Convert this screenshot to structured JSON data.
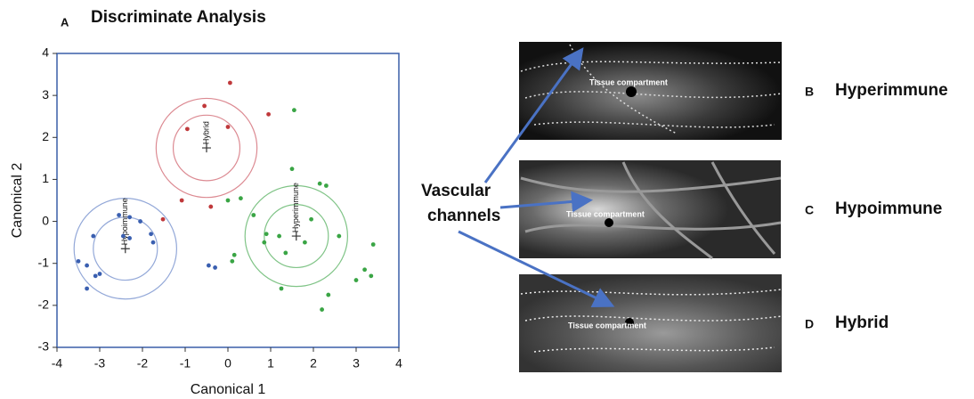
{
  "chart_data": {
    "type": "scatter",
    "panel": "A",
    "title": "Discriminate Analysis",
    "x_label": "Canonical 1",
    "y_label": "Canonical 2",
    "xlim": [
      -4,
      4
    ],
    "ylim": [
      -3,
      4
    ],
    "xticks": [
      -4,
      -3,
      -2,
      -1,
      0,
      1,
      2,
      3,
      4
    ],
    "yticks": [
      -3,
      -2,
      -1,
      0,
      1,
      2,
      3,
      4
    ],
    "series": [
      {
        "name": "Hybrid",
        "color": "#c0393b",
        "circle_color": "#dc8a92",
        "x": [
          0.05,
          -0.55,
          0.95,
          -0.95,
          0,
          -1.08,
          -0.4,
          -1.52
        ],
        "y": [
          3.3,
          2.75,
          2.55,
          2.2,
          2.25,
          0.5,
          0.35,
          0.05
        ],
        "centroid": {
          "x": -0.5,
          "y": 1.75,
          "radii": [
            0.78,
            1.18
          ]
        }
      },
      {
        "name": "Hypoimmune",
        "color": "#3a5fb0",
        "circle_color": "#93a8d8",
        "x": [
          -3.15,
          -2.55,
          -2.3,
          -2.05,
          -1.8,
          -1.75,
          -3.5,
          -3.3,
          -3.1,
          -3.0,
          -3.3,
          -2.3,
          -2.45,
          -0.45,
          -0.3
        ],
        "y": [
          -0.35,
          0.15,
          0.1,
          0,
          -0.3,
          -0.5,
          -0.95,
          -1.05,
          -1.3,
          -1.25,
          -1.6,
          -0.4,
          -0.35,
          -1.05,
          -1.1
        ],
        "centroid": {
          "x": -2.4,
          "y": -0.65,
          "radii": [
            0.75,
            1.2
          ]
        }
      },
      {
        "name": "Hyperimmune",
        "color": "#3aa545",
        "circle_color": "#80c487",
        "x": [
          1.55,
          1.5,
          2.15,
          2.3,
          0.3,
          0,
          0.6,
          1.95,
          0.9,
          1.2,
          0.85,
          1.35,
          2.6,
          3.4,
          3.2,
          3.35,
          3.0,
          2.35,
          2.2,
          1.25,
          0.15,
          0.1,
          1.8
        ],
        "y": [
          2.65,
          1.25,
          0.9,
          0.85,
          0.55,
          0.5,
          0.15,
          0.05,
          -0.3,
          -0.35,
          -0.5,
          -0.75,
          -0.35,
          -0.55,
          -1.15,
          -1.3,
          -1.4,
          -1.75,
          -2.1,
          -1.6,
          -0.8,
          -0.95,
          -0.5
        ],
        "centroid": {
          "x": 1.6,
          "y": -0.35,
          "radii": [
            0.75,
            1.2
          ]
        }
      }
    ]
  },
  "callout": [
    "Vascular",
    "channels"
  ],
  "panels": [
    {
      "letter": "B",
      "title": "Hyperimmune",
      "annotation": "Tissue compartment"
    },
    {
      "letter": "C",
      "title": "Hypoimmune",
      "annotation": "Tissue compartment"
    },
    {
      "letter": "D",
      "title": "Hybrid",
      "annotation": "Tissue compartment"
    }
  ]
}
